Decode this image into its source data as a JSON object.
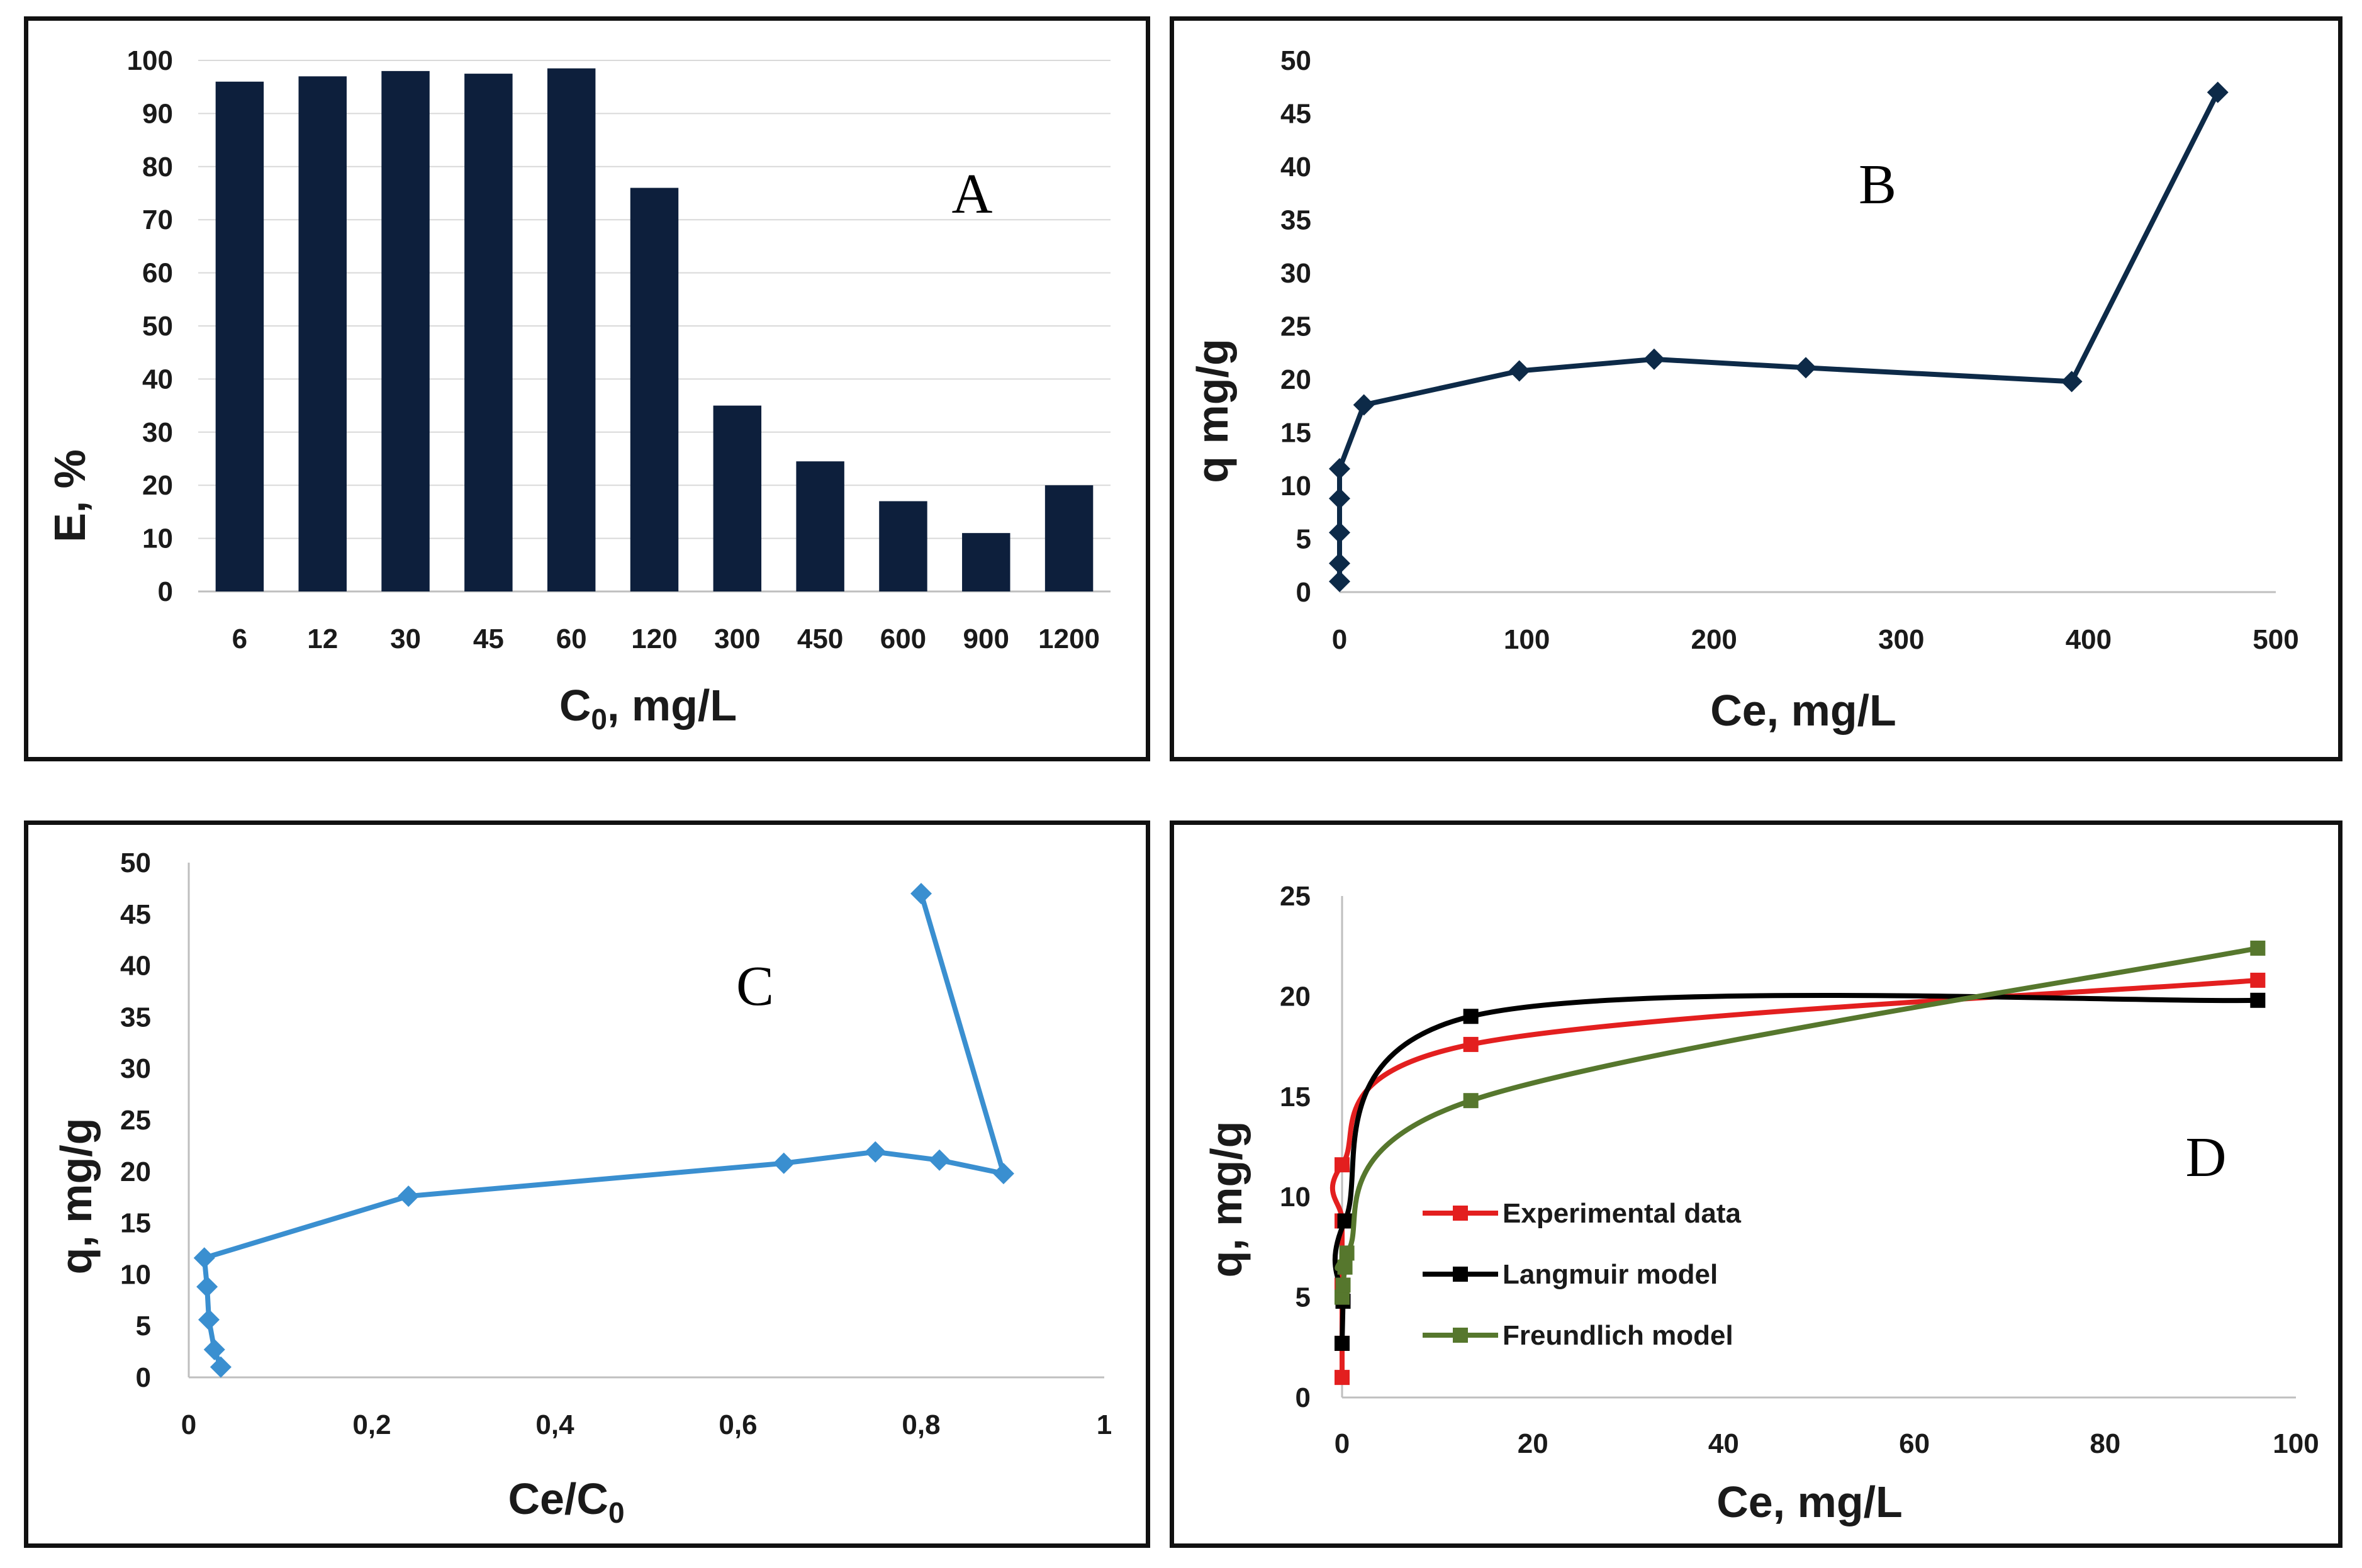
{
  "chart_data": [
    {
      "id": "A",
      "type": "bar",
      "panel_label": "A",
      "categories": [
        "6",
        "12",
        "30",
        "45",
        "60",
        "120",
        "300",
        "450",
        "600",
        "900",
        "1200"
      ],
      "values": [
        96,
        97,
        98,
        97.5,
        98.5,
        76,
        35,
        24.5,
        17,
        11,
        20
      ],
      "xlabel": "C0, mg/L",
      "xlabel_main": "C",
      "xlabel_sub": "0",
      "xlabel_rest": ", mg/L",
      "ylabel": "E, %",
      "ylim": [
        0,
        100
      ],
      "yticks": [
        "0",
        "10",
        "20",
        "30",
        "40",
        "50",
        "60",
        "70",
        "80",
        "90",
        "100"
      ],
      "grid": true,
      "color": "#0d1f3c"
    },
    {
      "id": "B",
      "type": "line",
      "panel_label": "B",
      "x": [
        0,
        0,
        0,
        0,
        0,
        13,
        96,
        168,
        249,
        391,
        469
      ],
      "y": [
        1,
        2.7,
        5.6,
        8.8,
        11.6,
        17.6,
        20.8,
        21.9,
        21.1,
        19.8,
        47
      ],
      "xlabel": "Ce, mg/L",
      "ylabel": "q mg/g",
      "xlim": [
        0,
        500
      ],
      "ylim": [
        0,
        50
      ],
      "xticks": [
        "0",
        "100",
        "200",
        "300",
        "400",
        "500"
      ],
      "yticks": [
        "0",
        "5",
        "10",
        "15",
        "20",
        "25",
        "30",
        "35",
        "40",
        "45",
        "50"
      ],
      "grid": false,
      "color": "#0d2a48",
      "marker": "diamond"
    },
    {
      "id": "C",
      "type": "line",
      "panel_label": "C",
      "x": [
        0.035,
        0.028,
        0.022,
        0.02,
        0.017,
        0.24,
        0.65,
        0.75,
        0.82,
        0.89,
        0.8
      ],
      "y": [
        1,
        2.7,
        5.6,
        8.8,
        11.6,
        17.6,
        20.8,
        21.9,
        21.1,
        19.8,
        47
      ],
      "xlabel": "Ce/C0",
      "xlabel_main": "Ce/C",
      "xlabel_sub": "0",
      "ylabel": "q, mg/g",
      "xlim": [
        0,
        1
      ],
      "ylim": [
        0,
        50
      ],
      "xticks": [
        "0",
        "0,2",
        "0,4",
        "0,6",
        "0,8",
        "1"
      ],
      "yticks": [
        "0",
        "5",
        "10",
        "15",
        "20",
        "25",
        "30",
        "35",
        "40",
        "45",
        "50"
      ],
      "grid": false,
      "color": "#3a8fd0",
      "marker": "diamond"
    },
    {
      "id": "D",
      "type": "line",
      "panel_label": "D",
      "xlabel": "Ce, mg/L",
      "ylabel": "q, mg/g",
      "xlim": [
        0,
        100
      ],
      "ylim": [
        0,
        25
      ],
      "xticks": [
        "0",
        "20",
        "40",
        "60",
        "80",
        "100"
      ],
      "yticks": [
        "0",
        "5",
        "10",
        "15",
        "20",
        "25"
      ],
      "grid": false,
      "legend_position": "center-left",
      "series": [
        {
          "name": "Experimental data",
          "color": "#e31f1f",
          "x": [
            0,
            0,
            0,
            0,
            0,
            13.5,
            96
          ],
          "y": [
            1,
            2.7,
            5.6,
            8.8,
            11.6,
            17.6,
            20.8
          ]
        },
        {
          "name": "Langmuir model",
          "color": "#000000",
          "x": [
            0,
            0.1,
            0.3,
            13.5,
            96
          ],
          "y": [
            2.7,
            4.8,
            8.8,
            19,
            19.8
          ]
        },
        {
          "name": "Freundlich model",
          "color": "#56772d",
          "x": [
            0,
            0.1,
            0.3,
            0.5,
            13.5,
            96
          ],
          "y": [
            5,
            5.6,
            6.5,
            7.2,
            14.8,
            22.4
          ]
        }
      ]
    }
  ]
}
